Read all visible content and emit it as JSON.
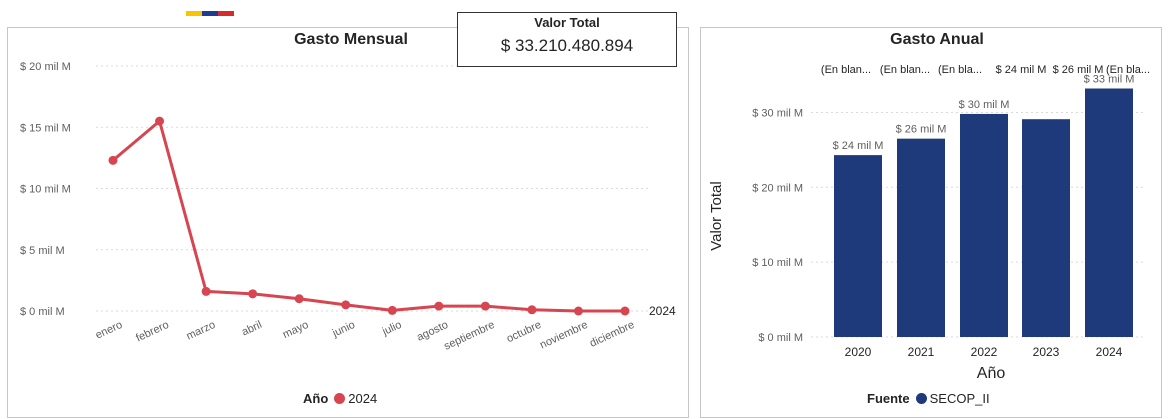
{
  "kpi": {
    "title": "Valor Total",
    "value": "$ 33.210.480.894"
  },
  "colors": {
    "line": "#d64550",
    "bar": "#1f3a7a",
    "grid": "#d9d9d9",
    "axis_text": "#605e5c",
    "flag": [
      "#f7c600",
      "#1f3a93",
      "#d72a2a"
    ]
  },
  "chart_data": [
    {
      "type": "line",
      "title": "Gasto Mensual",
      "categories": [
        "enero",
        "febrero",
        "marzo",
        "abril",
        "mayo",
        "junio",
        "julio",
        "agosto",
        "septiembre",
        "octubre",
        "noviembre",
        "diciembre"
      ],
      "series": [
        {
          "name": "2024",
          "values": [
            12.3,
            15.5,
            1.6,
            1.4,
            1.0,
            0.5,
            0.05,
            0.4,
            0.4,
            0.1,
            0.0,
            0.0
          ]
        }
      ],
      "ylim": [
        0,
        20
      ],
      "yticks": [
        0,
        5,
        10,
        15,
        20
      ],
      "ytick_labels": [
        "$ 0 mil M",
        "$ 5 mil M",
        "$ 10 mil M",
        "$ 15 mil M",
        "$ 20 mil M"
      ],
      "end_label": "2024",
      "grid": true,
      "legend": {
        "title": "Año",
        "entries": [
          "2024"
        ],
        "position": "bottom"
      }
    },
    {
      "type": "bar",
      "title": "Gasto Anual",
      "categories": [
        "2020",
        "2021",
        "2022",
        "2023",
        "2024"
      ],
      "values": [
        24.3,
        26.5,
        29.8,
        29.1,
        33.2
      ],
      "data_labels": [
        "$ 24 mil M",
        "$ 26 mil M",
        "$ 30 mil M",
        "",
        "$ 33 mil M"
      ],
      "top_labels": [
        "(En blan...",
        "(En blan...",
        "(En bla...",
        "$ 24 mil M",
        "$ 26 mil M",
        "(En bla..."
      ],
      "xlabel": "Año",
      "ylabel": "Valor Total",
      "ylim": [
        0,
        33
      ],
      "yticks": [
        0,
        10,
        20,
        30
      ],
      "ytick_labels": [
        "$ 0 mil M",
        "$ 10 mil M",
        "$ 20 mil M",
        "$ 30 mil M"
      ],
      "grid": true,
      "legend": {
        "title": "Fuente",
        "entries": [
          "SECOP_II"
        ],
        "position": "bottom"
      }
    }
  ]
}
